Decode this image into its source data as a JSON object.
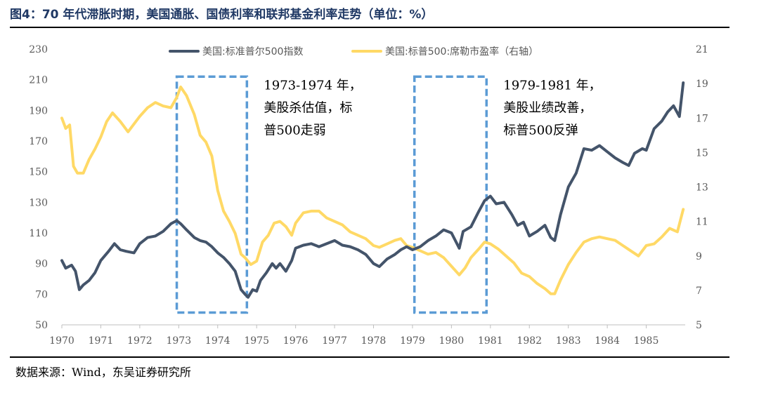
{
  "title": "图4：70 年代滞胀时期，美国通胀、国债利率和联邦基金利率走势（单位：%）",
  "source": "数据来源：Wind，东吴证券研究所",
  "colors": {
    "sp500": "#44546a",
    "pe": "#ffd966",
    "box": "#5b9bd5",
    "axis": "#595959"
  },
  "chart_data": {
    "type": "line",
    "x_range": [
      1970,
      1986
    ],
    "x_ticks": [
      1970,
      1971,
      1972,
      1973,
      1974,
      1975,
      1976,
      1977,
      1978,
      1979,
      1980,
      1981,
      1982,
      1983,
      1984,
      1985
    ],
    "x_tick_labels": [
      "1970",
      "1971",
      "1972",
      "1973",
      "1974",
      "1975",
      "1976",
      "1977",
      "1978",
      "1979",
      "1980",
      "1981",
      "1982",
      "1983",
      "1984",
      "1985"
    ],
    "y_left": {
      "min": 50,
      "max": 230,
      "ticks": [
        50,
        70,
        90,
        110,
        130,
        150,
        170,
        190,
        210,
        230
      ],
      "labels": [
        "50",
        "70",
        "90",
        "110",
        "130",
        "150",
        "170",
        "190",
        "210",
        "230"
      ]
    },
    "y_right": {
      "min": 5,
      "max": 21,
      "ticks": [
        5,
        7,
        9,
        11,
        13,
        15,
        17,
        19,
        21
      ],
      "labels": [
        "5",
        "7",
        "9",
        "11",
        "13",
        "15",
        "17",
        "19",
        "21"
      ]
    },
    "series": [
      {
        "name": "美国:标准普尔500指数",
        "axis": "left",
        "color": "#44546a",
        "x": [
          1970.0,
          1970.1,
          1970.25,
          1970.35,
          1970.45,
          1970.55,
          1970.7,
          1970.85,
          1971.0,
          1971.2,
          1971.35,
          1971.5,
          1971.65,
          1971.85,
          1972.0,
          1972.2,
          1972.4,
          1972.6,
          1972.8,
          1972.95,
          1973.05,
          1973.2,
          1973.4,
          1973.55,
          1973.7,
          1973.85,
          1974.0,
          1974.15,
          1974.3,
          1974.45,
          1974.6,
          1974.7,
          1974.78,
          1974.9,
          1975.0,
          1975.1,
          1975.25,
          1975.4,
          1975.5,
          1975.6,
          1975.75,
          1975.9,
          1976.0,
          1976.2,
          1976.4,
          1976.6,
          1976.8,
          1977.0,
          1977.2,
          1977.4,
          1977.6,
          1977.8,
          1978.0,
          1978.15,
          1978.35,
          1978.55,
          1978.7,
          1978.85,
          1979.0,
          1979.2,
          1979.4,
          1979.6,
          1979.8,
          1980.0,
          1980.2,
          1980.3,
          1980.5,
          1980.7,
          1980.85,
          1981.0,
          1981.15,
          1981.35,
          1981.55,
          1981.7,
          1981.85,
          1982.0,
          1982.2,
          1982.4,
          1982.55,
          1982.65,
          1982.8,
          1983.0,
          1983.2,
          1983.4,
          1983.6,
          1983.8,
          1984.0,
          1984.2,
          1984.4,
          1984.55,
          1984.7,
          1984.9,
          1985.0,
          1985.2,
          1985.4,
          1985.55,
          1985.7,
          1985.85,
          1985.95
        ],
        "values": [
          92,
          87,
          89,
          85,
          73,
          76,
          79,
          84,
          92,
          98,
          103,
          99,
          98,
          97,
          103,
          107,
          108,
          111,
          116,
          118,
          116,
          112,
          107,
          105,
          104,
          101,
          97,
          94,
          90,
          85,
          73,
          70,
          68,
          73,
          72,
          79,
          84,
          90,
          87,
          90,
          85,
          92,
          100,
          102,
          103,
          101,
          103,
          105,
          102,
          101,
          99,
          96,
          90,
          88,
          93,
          96,
          99,
          101,
          99,
          101,
          105,
          108,
          112,
          110,
          100,
          111,
          114,
          124,
          131,
          134,
          129,
          130,
          122,
          115,
          117,
          108,
          111,
          115,
          107,
          105,
          122,
          140,
          149,
          165,
          164,
          167,
          163,
          159,
          156,
          154,
          162,
          165,
          164,
          178,
          183,
          189,
          193,
          186,
          208
        ]
      },
      {
        "name": "美国:标普500:席勒市盈率（右轴）",
        "axis": "right",
        "color": "#ffd966",
        "x": [
          1970.0,
          1970.1,
          1970.2,
          1970.3,
          1970.4,
          1970.55,
          1970.7,
          1970.85,
          1971.0,
          1971.15,
          1971.3,
          1971.5,
          1971.7,
          1971.9,
          1972.0,
          1972.2,
          1972.4,
          1972.6,
          1972.8,
          1972.95,
          1973.05,
          1973.2,
          1973.4,
          1973.55,
          1973.7,
          1973.85,
          1974.0,
          1974.15,
          1974.3,
          1974.45,
          1974.6,
          1974.7,
          1974.85,
          1975.0,
          1975.15,
          1975.3,
          1975.45,
          1975.6,
          1975.75,
          1975.9,
          1976.0,
          1976.2,
          1976.4,
          1976.6,
          1976.8,
          1977.0,
          1977.2,
          1977.4,
          1977.6,
          1977.8,
          1978.0,
          1978.15,
          1978.35,
          1978.55,
          1978.7,
          1978.85,
          1979.0,
          1979.2,
          1979.4,
          1979.6,
          1979.8,
          1980.0,
          1980.2,
          1980.35,
          1980.5,
          1980.7,
          1980.85,
          1981.0,
          1981.2,
          1981.4,
          1981.6,
          1981.8,
          1982.0,
          1982.2,
          1982.4,
          1982.55,
          1982.65,
          1982.8,
          1983.0,
          1983.2,
          1983.4,
          1983.6,
          1983.8,
          1984.0,
          1984.2,
          1984.4,
          1984.6,
          1984.8,
          1985.0,
          1985.2,
          1985.4,
          1985.6,
          1985.8,
          1985.95
        ],
        "values": [
          17.0,
          16.4,
          16.6,
          14.2,
          13.8,
          13.8,
          14.6,
          15.2,
          15.9,
          16.8,
          17.3,
          16.8,
          16.2,
          16.8,
          17.1,
          17.6,
          17.9,
          17.7,
          17.6,
          18.2,
          18.8,
          18.3,
          17.2,
          16.0,
          15.6,
          14.8,
          12.8,
          11.6,
          11.0,
          10.3,
          9.1,
          8.9,
          8.5,
          8.7,
          9.8,
          10.2,
          10.9,
          11.0,
          10.7,
          10.2,
          10.9,
          11.5,
          11.6,
          11.6,
          11.2,
          11.0,
          10.8,
          10.4,
          10.2,
          10.0,
          9.6,
          9.5,
          9.7,
          9.9,
          10.0,
          9.6,
          9.5,
          9.3,
          9.1,
          9.2,
          8.9,
          8.4,
          7.9,
          8.3,
          8.9,
          9.4,
          9.8,
          9.7,
          9.4,
          9.0,
          8.6,
          8.0,
          7.8,
          7.4,
          7.1,
          6.8,
          6.8,
          7.6,
          8.5,
          9.2,
          9.8,
          10.0,
          10.1,
          10.0,
          9.9,
          9.6,
          9.3,
          9.0,
          9.6,
          9.7,
          10.1,
          10.6,
          10.4,
          11.7
        ]
      }
    ],
    "annotations": [
      {
        "x_start": 1972.95,
        "x_end": 1974.75,
        "y_top": 212,
        "y_bottom": 58,
        "label_lines": [
          "1973-1974 年，",
          "美股杀估值，标",
          "普500走弱"
        ]
      },
      {
        "x_start": 1979.05,
        "x_end": 1980.9,
        "y_top": 212,
        "y_bottom": 58,
        "label_lines": [
          "1979-1981 年，",
          "美股业绩改善，",
          "标普500反弹"
        ]
      }
    ],
    "legend": [
      "美国:标准普尔500指数",
      "美国:标普500:席勒市盈率（右轴）"
    ],
    "legend_position": "top-left"
  }
}
